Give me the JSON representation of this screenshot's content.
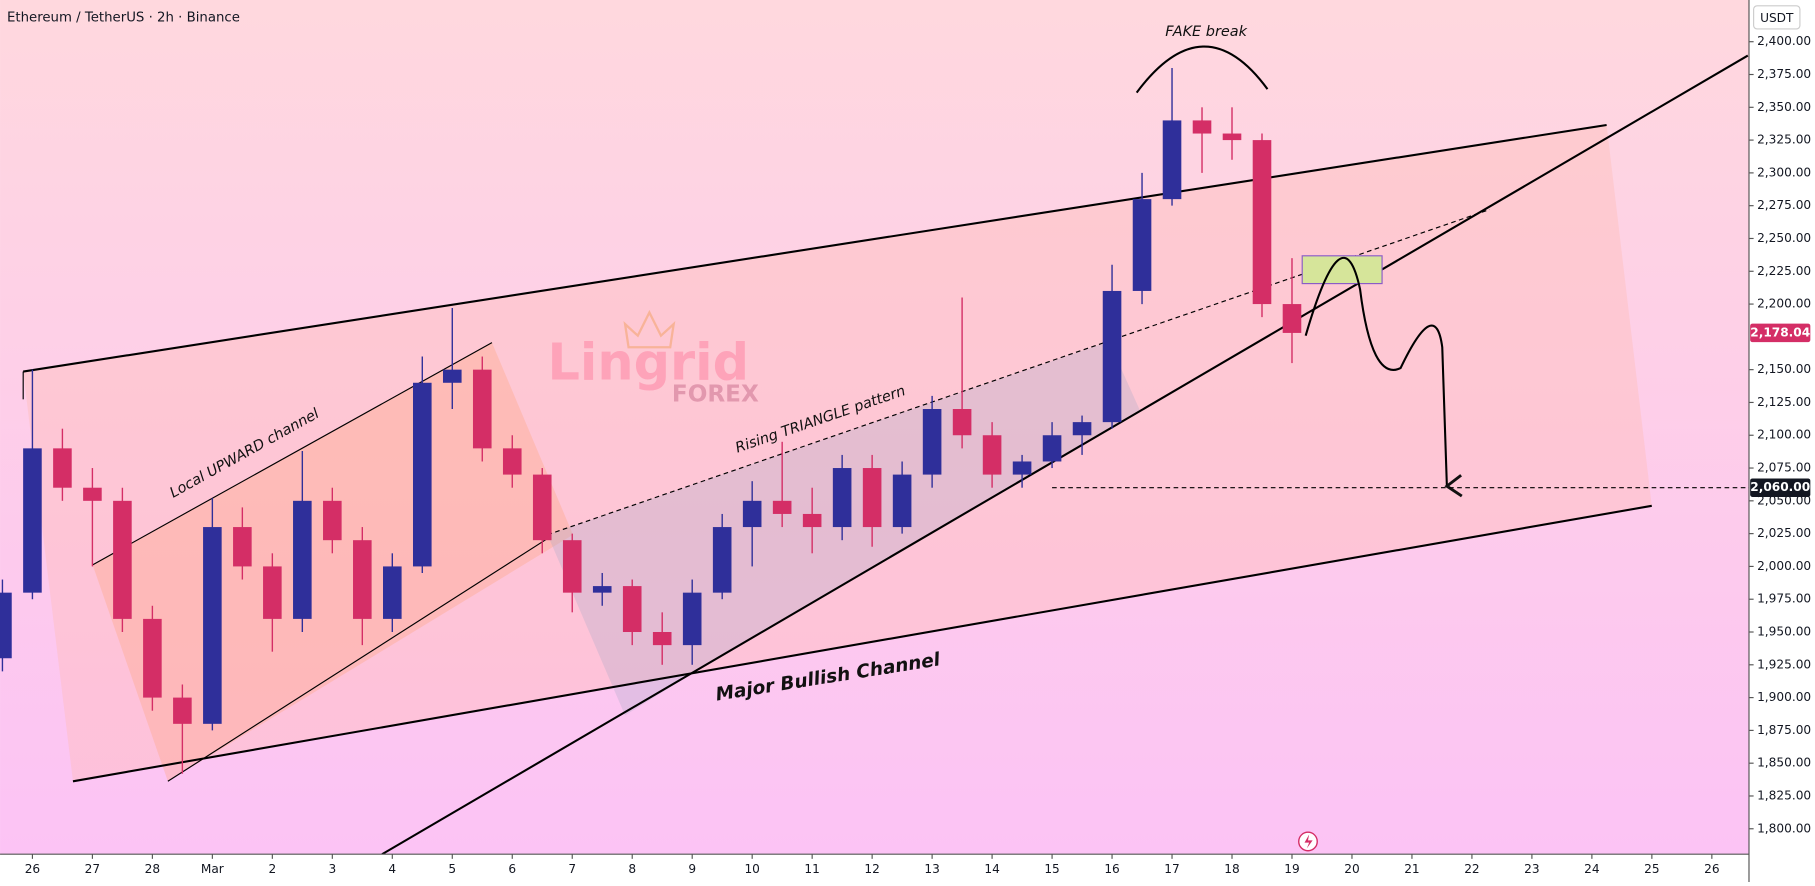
{
  "chart_data": {
    "type": "candlestick",
    "title": "Ethereum / TetherUS · 2h · Binance",
    "currency": "USDT",
    "up_color": "#2f2f9a",
    "down_color": "#d42e66",
    "xlim": [
      -0.54,
      28.6
    ],
    "ylim": [
      1780.6,
      2431.8
    ],
    "xticks": [
      {
        "value": 0,
        "label": "26"
      },
      {
        "value": 1,
        "label": "27"
      },
      {
        "value": 2,
        "label": "28"
      },
      {
        "value": 3,
        "label": "Mar"
      },
      {
        "value": 4,
        "label": "2"
      },
      {
        "value": 5,
        "label": "3"
      },
      {
        "value": 6,
        "label": "4"
      },
      {
        "value": 7,
        "label": "5"
      },
      {
        "value": 8,
        "label": "6"
      },
      {
        "value": 9,
        "label": "7"
      },
      {
        "value": 10,
        "label": "8"
      },
      {
        "value": 11,
        "label": "9"
      },
      {
        "value": 12,
        "label": "10"
      },
      {
        "value": 13,
        "label": "11"
      },
      {
        "value": 14,
        "label": "12"
      },
      {
        "value": 15,
        "label": "13"
      },
      {
        "value": 16,
        "label": "14"
      },
      {
        "value": 17,
        "label": "15"
      },
      {
        "value": 18,
        "label": "16"
      },
      {
        "value": 19,
        "label": "17"
      },
      {
        "value": 20,
        "label": "18"
      },
      {
        "value": 21,
        "label": "19"
      },
      {
        "value": 22,
        "label": "20"
      },
      {
        "value": 23,
        "label": "21"
      },
      {
        "value": 24,
        "label": "22"
      },
      {
        "value": 25,
        "label": "23"
      },
      {
        "value": 26,
        "label": "24"
      },
      {
        "value": 27,
        "label": "25"
      },
      {
        "value": 28,
        "label": "26"
      }
    ],
    "yticks": [
      {
        "value": 1800,
        "label": "1,800.00"
      },
      {
        "value": 1825,
        "label": "1,825.00"
      },
      {
        "value": 1850,
        "label": "1,850.00"
      },
      {
        "value": 1875,
        "label": "1,875.00"
      },
      {
        "value": 1900,
        "label": "1,900.00"
      },
      {
        "value": 1925,
        "label": "1,925.00"
      },
      {
        "value": 1950,
        "label": "1,950.00"
      },
      {
        "value": 1975,
        "label": "1,975.00"
      },
      {
        "value": 2000,
        "label": "2,000.00"
      },
      {
        "value": 2025,
        "label": "2,025.00"
      },
      {
        "value": 2050,
        "label": "2,050.00"
      },
      {
        "value": 2075,
        "label": "2,075.00"
      },
      {
        "value": 2100,
        "label": "2,100.00"
      },
      {
        "value": 2125,
        "label": "2,125.00"
      },
      {
        "value": 2150,
        "label": "2,150.00"
      },
      {
        "value": 2200,
        "label": "2,200.00"
      },
      {
        "value": 2225,
        "label": "2,225.00"
      },
      {
        "value": 2250,
        "label": "2,250.00"
      },
      {
        "value": 2275,
        "label": "2,275.00"
      },
      {
        "value": 2300,
        "label": "2,300.00"
      },
      {
        "value": 2325,
        "label": "2,325.00"
      },
      {
        "value": 2350,
        "label": "2,350.00"
      },
      {
        "value": 2375,
        "label": "2,375.00"
      },
      {
        "value": 2400,
        "label": "2,400.00"
      }
    ],
    "x": [
      -0.5,
      0,
      0.5,
      1,
      1.5,
      2,
      2.5,
      3,
      3.5,
      4,
      4.5,
      5,
      5.5,
      6,
      6.5,
      7,
      7.5,
      8,
      8.5,
      9,
      9.5,
      10,
      10.5,
      11,
      11.5,
      12,
      12.5,
      13,
      13.5,
      14,
      14.5,
      15,
      15.5,
      16,
      16.5,
      17,
      17.5,
      18,
      18.5,
      19,
      19.5,
      20,
      20.5,
      21
    ],
    "open": [
      1930,
      1980,
      2090,
      2060,
      2050,
      1960,
      1900,
      1880,
      2030,
      2000,
      1960,
      2050,
      2020,
      1960,
      2000,
      2140,
      2150,
      2090,
      2070,
      2020,
      1980,
      1985,
      1950,
      1940,
      1980,
      2030,
      2050,
      2040,
      2030,
      2075,
      2030,
      2070,
      2120,
      2100,
      2070,
      2080,
      2100,
      2110,
      2210,
      2280,
      2340,
      2330,
      2325,
      2200
    ],
    "high": [
      1990,
      2150,
      2105,
      2075,
      2060,
      1970,
      1910,
      2052,
      2045,
      2010,
      2088,
      2060,
      2030,
      2010,
      2160,
      2197,
      2160,
      2100,
      2075,
      2025,
      1995,
      1990,
      1965,
      1990,
      2040,
      2065,
      2095,
      2060,
      2085,
      2085,
      2080,
      2130,
      2205,
      2110,
      2085,
      2110,
      2115,
      2230,
      2300,
      2380,
      2350,
      2350,
      2330,
      2235
    ],
    "low": [
      1920,
      1975,
      2050,
      2000,
      1950,
      1890,
      1842,
      1875,
      1990,
      1935,
      1950,
      2010,
      1940,
      1950,
      1995,
      2120,
      2080,
      2060,
      2010,
      1965,
      1970,
      1940,
      1925,
      1925,
      1975,
      2000,
      2030,
      2010,
      2020,
      2015,
      2025,
      2060,
      2090,
      2060,
      2060,
      2075,
      2085,
      2105,
      2200,
      2275,
      2300,
      2310,
      2190,
      2155
    ],
    "close": [
      1980,
      2090,
      2060,
      2050,
      1960,
      1900,
      1880,
      2030,
      2000,
      1960,
      2050,
      2020,
      1960,
      2000,
      2140,
      2150,
      2090,
      2070,
      2020,
      1980,
      1985,
      1950,
      1940,
      1980,
      2030,
      2050,
      2040,
      2030,
      2075,
      2030,
      2070,
      2120,
      2100,
      2070,
      2080,
      2100,
      2110,
      2210,
      2280,
      2340,
      2330,
      2325,
      2200,
      2178
    ],
    "last_price": {
      "value": 2178.04,
      "label": "2,178.04"
    },
    "target_level": {
      "value": 2060,
      "label": "2,060.00"
    },
    "annotations": [
      "FAKE break",
      "Local UPWARD channel",
      "Rising TRIANGLE pattern",
      "Major Bullish Channel"
    ],
    "watermark": [
      "Lingrid",
      "FOREX"
    ]
  }
}
